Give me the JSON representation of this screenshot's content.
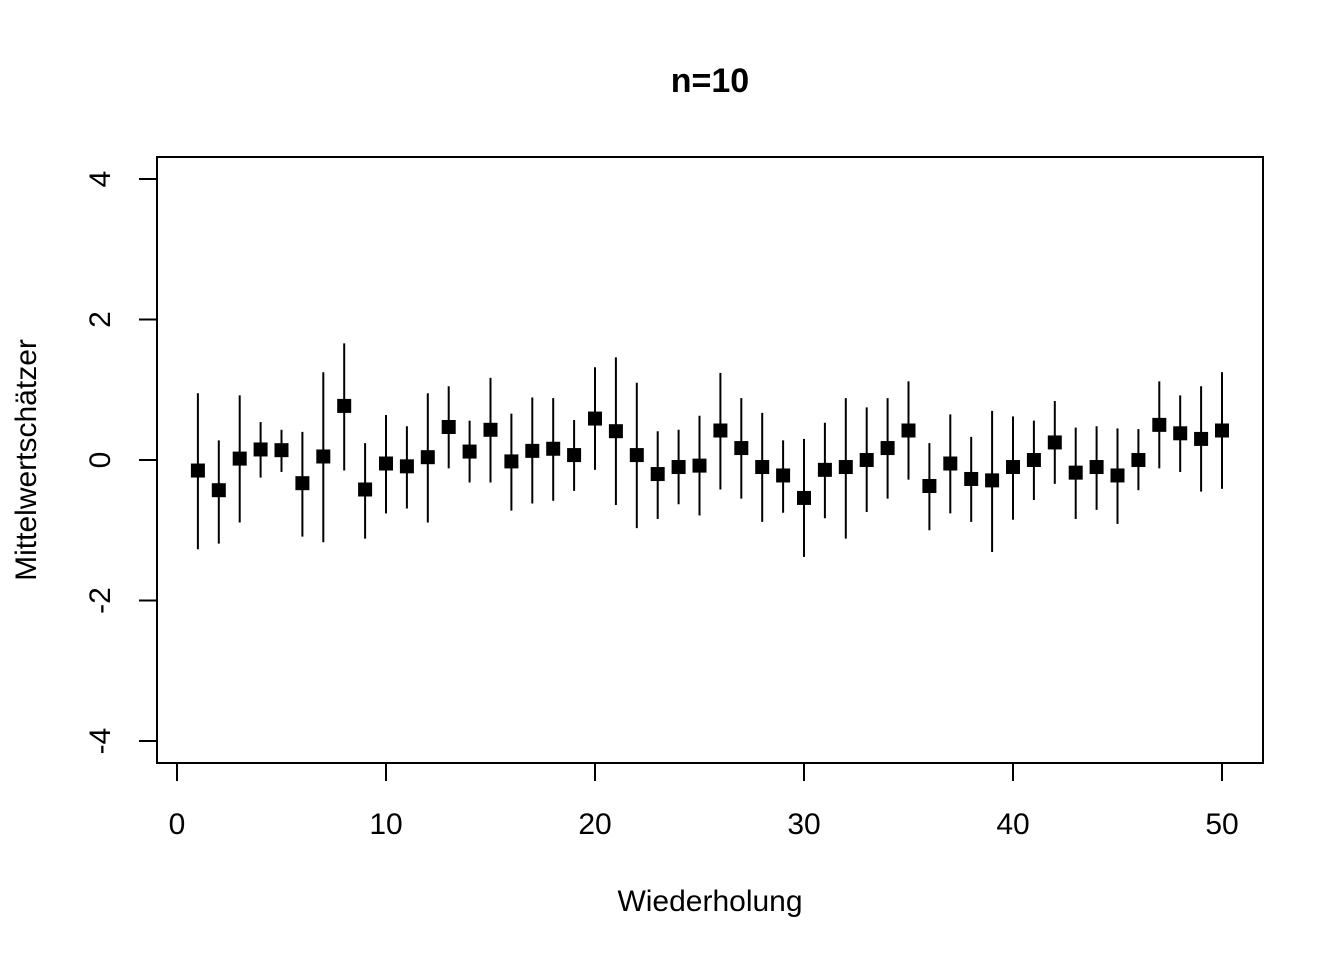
{
  "chart_data": {
    "type": "scatter",
    "title": "n=10",
    "xlabel": "Wiederholung",
    "ylabel": "Mittelwertschätzer",
    "xlim": [
      0,
      50
    ],
    "ylim": [
      -4,
      4
    ],
    "xticks": [
      0,
      10,
      20,
      30,
      40,
      50
    ],
    "yticks": [
      -4,
      -2,
      0,
      2,
      4
    ],
    "grid": false,
    "marker": "filled-square",
    "points": [
      {
        "x": 1,
        "y": -0.15,
        "lo": -1.27,
        "hi": 0.95
      },
      {
        "x": 2,
        "y": -0.43,
        "lo": -1.19,
        "hi": 0.28
      },
      {
        "x": 3,
        "y": 0.02,
        "lo": -0.89,
        "hi": 0.92
      },
      {
        "x": 4,
        "y": 0.15,
        "lo": -0.25,
        "hi": 0.54
      },
      {
        "x": 5,
        "y": 0.14,
        "lo": -0.17,
        "hi": 0.43
      },
      {
        "x": 6,
        "y": -0.33,
        "lo": -1.09,
        "hi": 0.4
      },
      {
        "x": 7,
        "y": 0.05,
        "lo": -1.17,
        "hi": 1.25
      },
      {
        "x": 8,
        "y": 0.77,
        "lo": -0.15,
        "hi": 1.66
      },
      {
        "x": 9,
        "y": -0.42,
        "lo": -1.12,
        "hi": 0.24
      },
      {
        "x": 10,
        "y": -0.05,
        "lo": -0.76,
        "hi": 0.64
      },
      {
        "x": 11,
        "y": -0.09,
        "lo": -0.69,
        "hi": 0.48
      },
      {
        "x": 12,
        "y": 0.04,
        "lo": -0.89,
        "hi": 0.95
      },
      {
        "x": 13,
        "y": 0.47,
        "lo": -0.12,
        "hi": 1.05
      },
      {
        "x": 14,
        "y": 0.12,
        "lo": -0.32,
        "hi": 0.56
      },
      {
        "x": 15,
        "y": 0.43,
        "lo": -0.32,
        "hi": 1.17
      },
      {
        "x": 16,
        "y": -0.02,
        "lo": -0.72,
        "hi": 0.66
      },
      {
        "x": 17,
        "y": 0.13,
        "lo": -0.62,
        "hi": 0.89
      },
      {
        "x": 18,
        "y": 0.16,
        "lo": -0.58,
        "hi": 0.88
      },
      {
        "x": 19,
        "y": 0.07,
        "lo": -0.44,
        "hi": 0.57
      },
      {
        "x": 20,
        "y": 0.59,
        "lo": -0.14,
        "hi": 1.32
      },
      {
        "x": 21,
        "y": 0.41,
        "lo": -0.64,
        "hi": 1.46
      },
      {
        "x": 22,
        "y": 0.07,
        "lo": -0.97,
        "hi": 1.1
      },
      {
        "x": 23,
        "y": -0.2,
        "lo": -0.84,
        "hi": 0.41
      },
      {
        "x": 24,
        "y": -0.1,
        "lo": -0.63,
        "hi": 0.43
      },
      {
        "x": 25,
        "y": -0.08,
        "lo": -0.79,
        "hi": 0.63
      },
      {
        "x": 26,
        "y": 0.42,
        "lo": -0.42,
        "hi": 1.24
      },
      {
        "x": 27,
        "y": 0.17,
        "lo": -0.55,
        "hi": 0.88
      },
      {
        "x": 28,
        "y": -0.1,
        "lo": -0.88,
        "hi": 0.67
      },
      {
        "x": 29,
        "y": -0.22,
        "lo": -0.75,
        "hi": 0.28
      },
      {
        "x": 30,
        "y": -0.54,
        "lo": -1.38,
        "hi": 0.3
      },
      {
        "x": 31,
        "y": -0.14,
        "lo": -0.83,
        "hi": 0.53
      },
      {
        "x": 32,
        "y": -0.1,
        "lo": -1.12,
        "hi": 0.88
      },
      {
        "x": 33,
        "y": 0.0,
        "lo": -0.74,
        "hi": 0.75
      },
      {
        "x": 34,
        "y": 0.17,
        "lo": -0.55,
        "hi": 0.88
      },
      {
        "x": 35,
        "y": 0.42,
        "lo": -0.28,
        "hi": 1.12
      },
      {
        "x": 36,
        "y": -0.37,
        "lo": -1.0,
        "hi": 0.24
      },
      {
        "x": 37,
        "y": -0.05,
        "lo": -0.76,
        "hi": 0.65
      },
      {
        "x": 38,
        "y": -0.27,
        "lo": -0.88,
        "hi": 0.33
      },
      {
        "x": 39,
        "y": -0.29,
        "lo": -1.31,
        "hi": 0.7
      },
      {
        "x": 40,
        "y": -0.1,
        "lo": -0.85,
        "hi": 0.62
      },
      {
        "x": 41,
        "y": 0.0,
        "lo": -0.57,
        "hi": 0.56
      },
      {
        "x": 42,
        "y": 0.25,
        "lo": -0.34,
        "hi": 0.84
      },
      {
        "x": 43,
        "y": -0.18,
        "lo": -0.84,
        "hi": 0.46
      },
      {
        "x": 44,
        "y": -0.1,
        "lo": -0.71,
        "hi": 0.48
      },
      {
        "x": 45,
        "y": -0.22,
        "lo": -0.91,
        "hi": 0.45
      },
      {
        "x": 46,
        "y": 0.0,
        "lo": -0.43,
        "hi": 0.44
      },
      {
        "x": 47,
        "y": 0.5,
        "lo": -0.12,
        "hi": 1.12
      },
      {
        "x": 48,
        "y": 0.38,
        "lo": -0.17,
        "hi": 0.92
      },
      {
        "x": 49,
        "y": 0.3,
        "lo": -0.45,
        "hi": 1.05
      },
      {
        "x": 50,
        "y": 0.42,
        "lo": -0.41,
        "hi": 1.25
      }
    ]
  }
}
